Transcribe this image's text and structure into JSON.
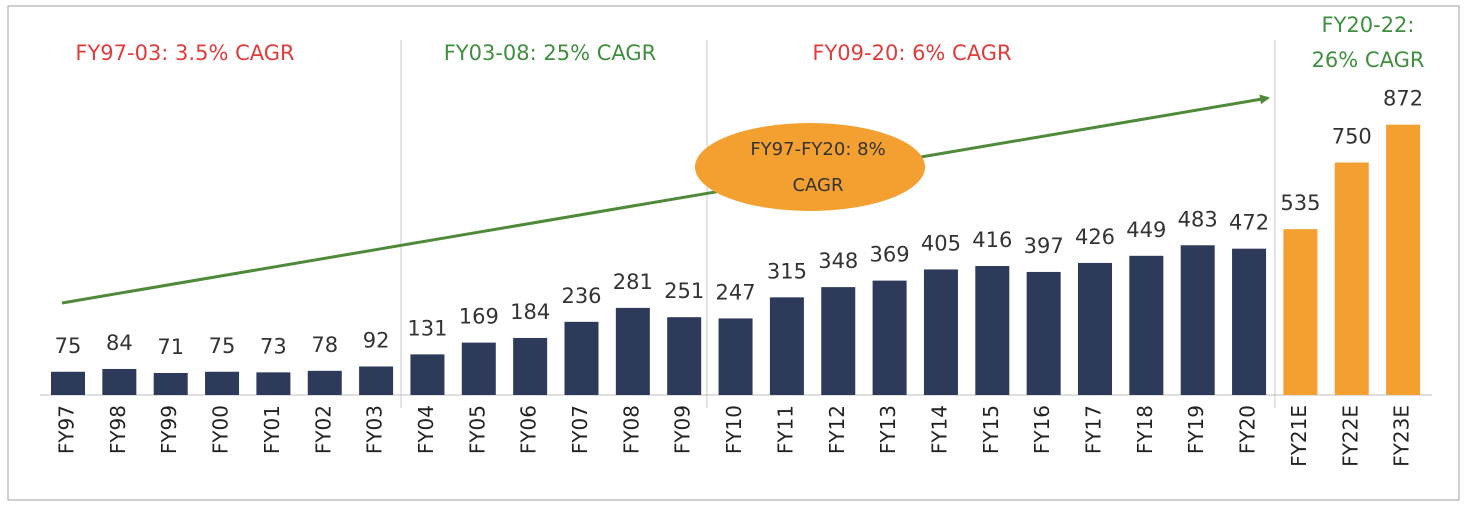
{
  "chart_data": {
    "type": "bar",
    "categories": [
      "FY97",
      "FY98",
      "FY99",
      "FY00",
      "FY01",
      "FY02",
      "FY03",
      "FY04",
      "FY05",
      "FY06",
      "FY07",
      "FY08",
      "FY09",
      "FY10",
      "FY11",
      "FY12",
      "FY13",
      "FY14",
      "FY15",
      "FY16",
      "FY17",
      "FY18",
      "FY19",
      "FY20",
      "FY21E",
      "FY22E",
      "FY23E"
    ],
    "values": [
      75,
      84,
      71,
      75,
      73,
      78,
      92,
      131,
      169,
      184,
      236,
      281,
      251,
      247,
      315,
      348,
      369,
      405,
      416,
      397,
      426,
      449,
      483,
      472,
      535,
      750,
      872
    ],
    "colors": [
      "#2e3a59",
      "#2e3a59",
      "#2e3a59",
      "#2e3a59",
      "#2e3a59",
      "#2e3a59",
      "#2e3a59",
      "#2e3a59",
      "#2e3a59",
      "#2e3a59",
      "#2e3a59",
      "#2e3a59",
      "#2e3a59",
      "#2e3a59",
      "#2e3a59",
      "#2e3a59",
      "#2e3a59",
      "#2e3a59",
      "#2e3a59",
      "#2e3a59",
      "#2e3a59",
      "#2e3a59",
      "#2e3a59",
      "#2e3a59",
      "#f4a030",
      "#f4a030",
      "#f4a030"
    ],
    "annotations": [
      {
        "lines": [
          "FY97-03: 3.5% CAGR"
        ],
        "color": "#e03c3c"
      },
      {
        "lines": [
          "FY03-08: 25% CAGR"
        ],
        "color": "#3f8f3f"
      },
      {
        "lines": [
          "FY09-20: 6% CAGR"
        ],
        "color": "#e03c3c"
      },
      {
        "lines": [
          "FY20-22:",
          "26% CAGR"
        ],
        "color": "#3f8f3f"
      }
    ],
    "callout": {
      "lines": [
        "FY97-FY20: 8%",
        "CAGR"
      ],
      "color": "#f4a030",
      "arrow_color": "#4f8a3a"
    }
  }
}
